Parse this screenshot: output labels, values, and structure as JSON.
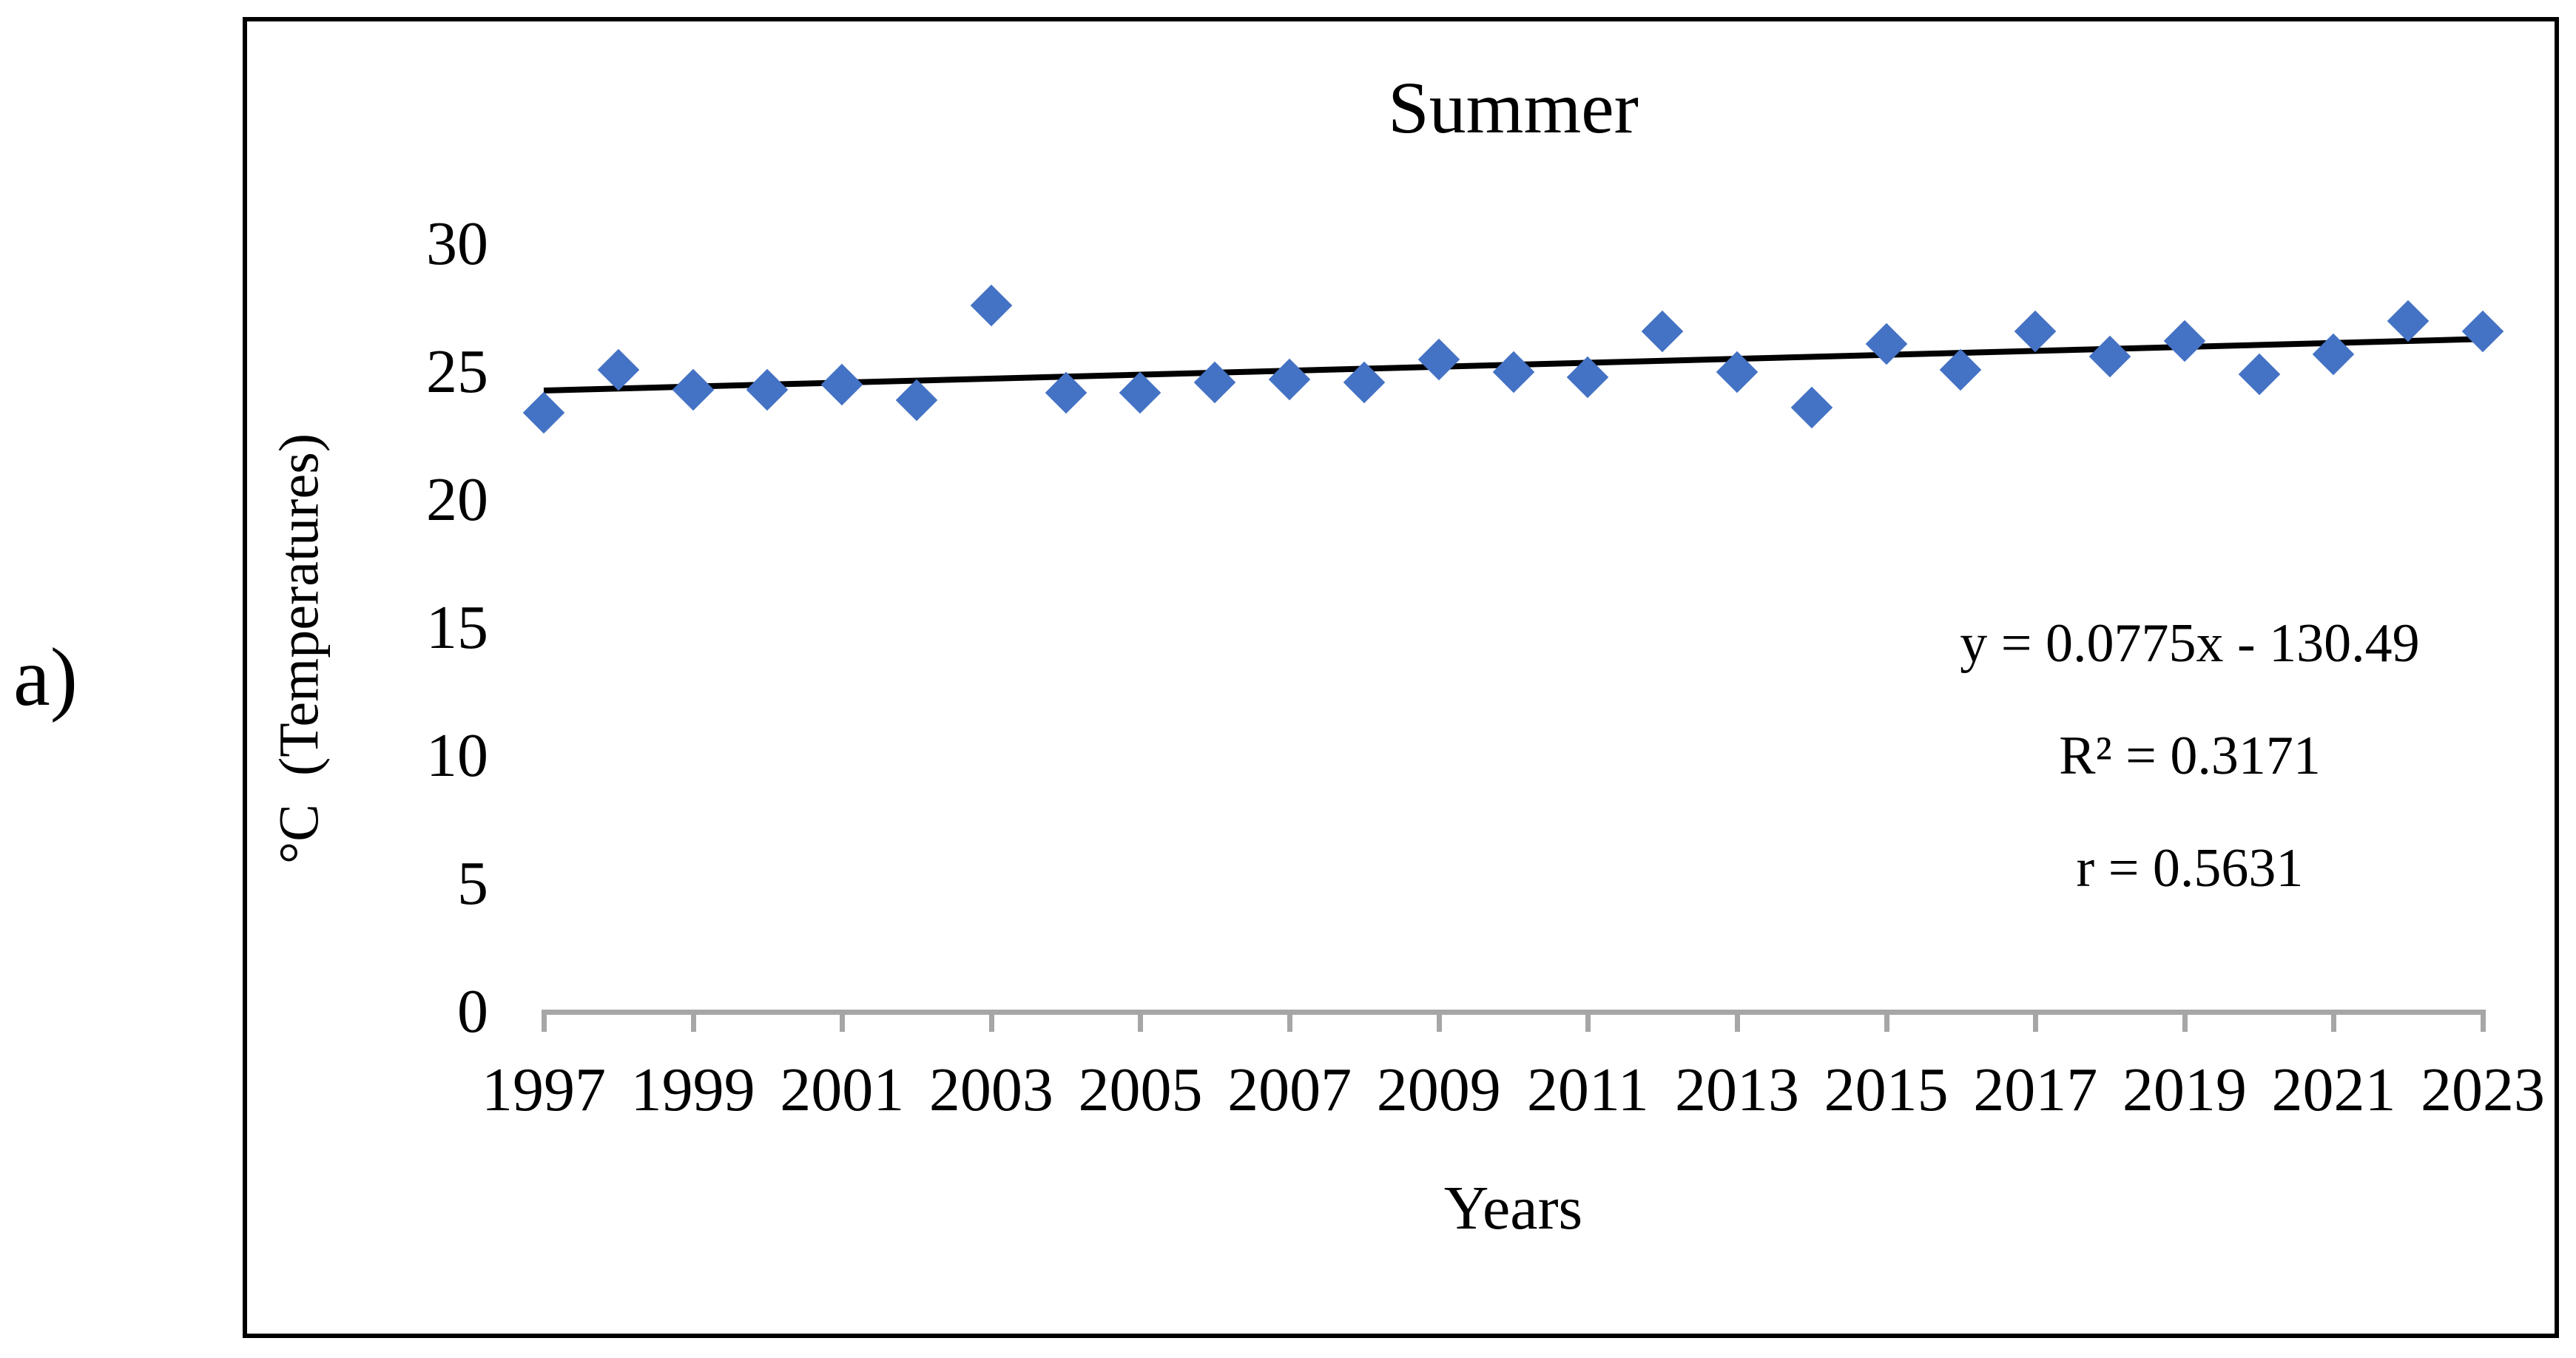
{
  "figure_label": "a)",
  "chart": {
    "title": "Summer",
    "y_axis": {
      "label": "°C  (Temperatures)",
      "ticks": [
        30,
        25,
        20,
        15,
        10,
        5,
        0
      ]
    },
    "x_axis": {
      "label": "Years",
      "tick_labels": [
        1997,
        1999,
        2001,
        2003,
        2005,
        2007,
        2009,
        2011,
        2013,
        2015,
        2017,
        2019,
        2021,
        2023
      ]
    },
    "annotation": {
      "equation": "y = 0.0775x - 130.49",
      "r_squared": "R² = 0.3171",
      "r": "r = 0.5631"
    },
    "colors": {
      "marker": "#4472C4",
      "trendline": "#000000",
      "axis": "#A6A6A6",
      "text": "#000000"
    }
  },
  "chart_data": {
    "type": "scatter",
    "x": [
      1997,
      1998,
      1999,
      2000,
      2001,
      2002,
      2003,
      2004,
      2005,
      2006,
      2007,
      2008,
      2009,
      2010,
      2011,
      2012,
      2013,
      2014,
      2015,
      2016,
      2017,
      2018,
      2019,
      2020,
      2021,
      2022,
      2023
    ],
    "y": [
      23.4,
      25.1,
      24.3,
      24.3,
      24.5,
      23.9,
      27.6,
      24.2,
      24.2,
      24.6,
      24.7,
      24.6,
      25.5,
      25.0,
      24.8,
      26.6,
      25.0,
      23.6,
      26.1,
      25.1,
      26.6,
      25.6,
      26.2,
      24.9,
      25.7,
      27.0,
      26.6
    ],
    "trendline": {
      "slope": 0.0775,
      "intercept": -130.49,
      "x_start": 1997,
      "x_end": 2023
    },
    "title": "Summer",
    "xlabel": "Years",
    "ylabel": "°C  (Temperatures)",
    "xlim": [
      1997,
      2023
    ],
    "ylim": [
      0,
      30
    ],
    "grid": false,
    "legend": false
  }
}
